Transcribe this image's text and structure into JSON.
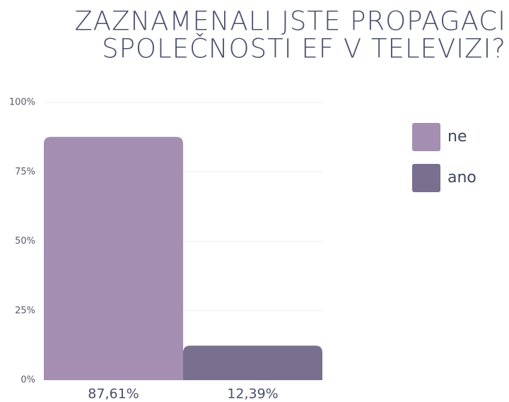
{
  "chart_data": {
    "type": "bar",
    "title": [
      "ZAZNAMENALI JSTE PROPAGACI",
      "SPOLEČNOSTI EF V TELEVIZI?"
    ],
    "series": [
      {
        "name": "ne",
        "color": "#a48eb1",
        "values": [
          87.61
        ],
        "value_labels": [
          "87,61%"
        ]
      },
      {
        "name": "ano",
        "color": "#796f8e",
        "values": [
          12.39
        ],
        "value_labels": [
          "12,39%"
        ]
      }
    ],
    "ylim": [
      0,
      100
    ],
    "yticks": [
      {
        "value": 0,
        "label": "0%"
      },
      {
        "value": 25,
        "label": "25%"
      },
      {
        "value": 50,
        "label": "50%"
      },
      {
        "value": 75,
        "label": "75%"
      },
      {
        "value": 100,
        "label": "100%"
      }
    ],
    "grid": true,
    "legend": "right"
  }
}
